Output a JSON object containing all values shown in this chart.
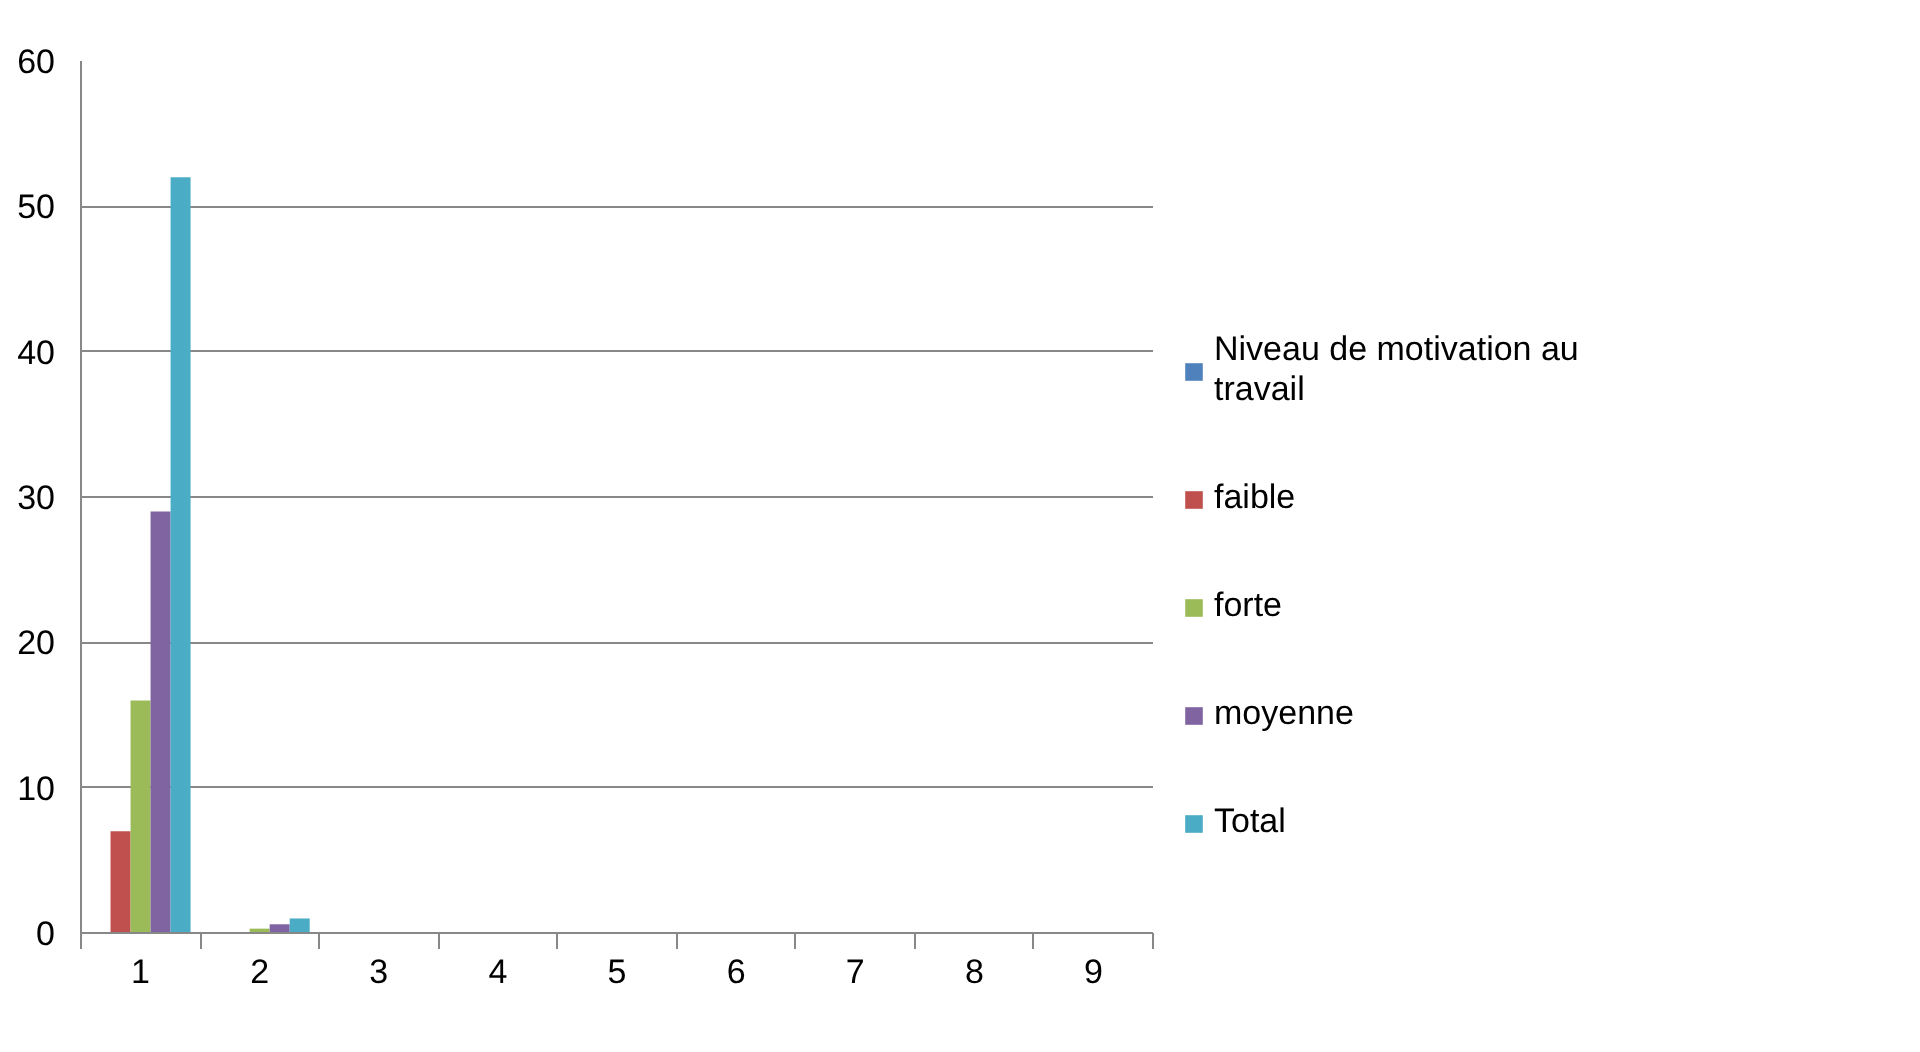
{
  "chart_data": {
    "type": "bar",
    "categories": [
      "1",
      "2",
      "3",
      "4",
      "5",
      "6",
      "7",
      "8",
      "9"
    ],
    "series": [
      {
        "name": "Niveau de motivation au travail",
        "color": "#4f81bd",
        "values": [
          0,
          0,
          null,
          null,
          null,
          null,
          null,
          null,
          null
        ]
      },
      {
        "name": "faible",
        "color": "#c0504d",
        "values": [
          7,
          null,
          null,
          null,
          null,
          null,
          null,
          null,
          null
        ]
      },
      {
        "name": "forte",
        "color": "#9bbb59",
        "values": [
          16,
          0.3,
          null,
          null,
          null,
          null,
          null,
          null,
          null
        ]
      },
      {
        "name": "moyenne",
        "color": "#8064a2",
        "values": [
          29,
          0.6,
          null,
          null,
          null,
          null,
          null,
          null,
          null
        ]
      },
      {
        "name": "Total",
        "color": "#4bacc6",
        "values": [
          52,
          1,
          null,
          null,
          null,
          null,
          null,
          null,
          null
        ]
      }
    ],
    "ylim": [
      0,
      60
    ],
    "yticks": [
      0,
      10,
      20,
      30,
      40,
      50,
      60
    ],
    "grid": "y",
    "legend": "right"
  }
}
